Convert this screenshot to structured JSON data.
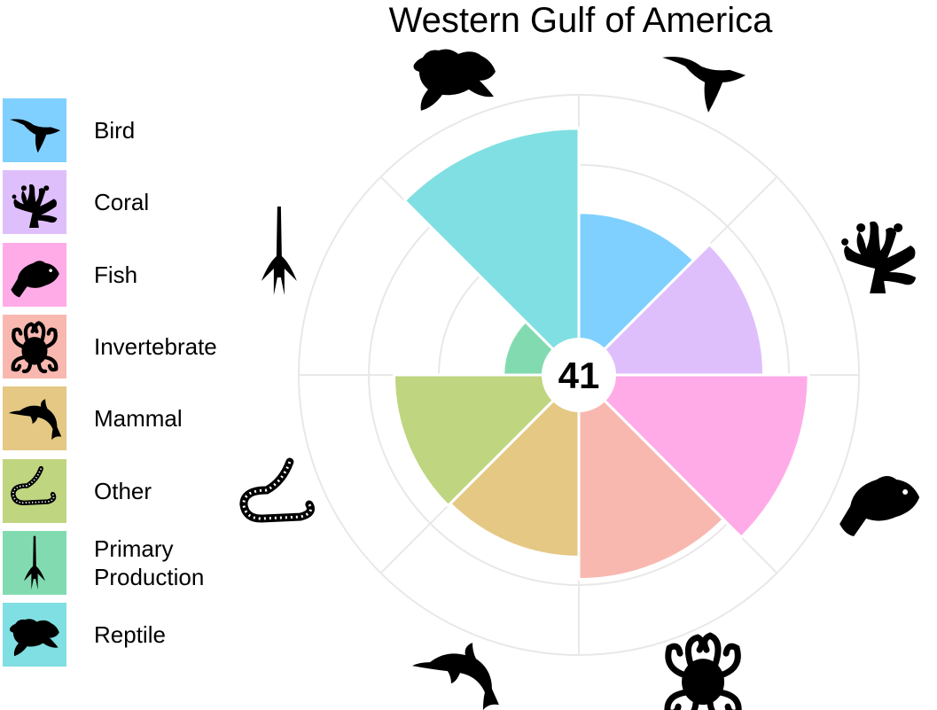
{
  "chart_data": {
    "type": "polar-bar",
    "title": "Western Gulf of America",
    "center_label": "41",
    "rmax": 1.0,
    "grid_rings": [
      0.25,
      0.5,
      0.75,
      1.0
    ],
    "grid": true,
    "legend_position": "left",
    "categories": [
      "Bird",
      "Coral",
      "Fish",
      "Invertebrate",
      "Mammal",
      "Other",
      "Primary Production",
      "Reptile"
    ],
    "legend_labels": [
      "Bird",
      "Coral",
      "Fish",
      "Invertebrate",
      "Mammal",
      "Other",
      "Primary Production",
      "Reptile"
    ],
    "values": [
      0.58,
      0.66,
      0.82,
      0.73,
      0.65,
      0.66,
      0.27,
      0.88
    ],
    "colors": {
      "Bird": "#80d0ff",
      "Coral": "#dfbffb",
      "Fish": "#ffabe8",
      "Invertebrate": "#f8b8b0",
      "Mammal": "#e4c883",
      "Other": "#bfd580",
      "Primary Production": "#82dbb0",
      "Reptile": "#80dfe2"
    },
    "icons": [
      "bird-icon",
      "coral-icon",
      "fish-icon",
      "octopus-icon",
      "dolphin-icon",
      "worm-icon",
      "plankton-icon",
      "turtle-icon"
    ]
  }
}
